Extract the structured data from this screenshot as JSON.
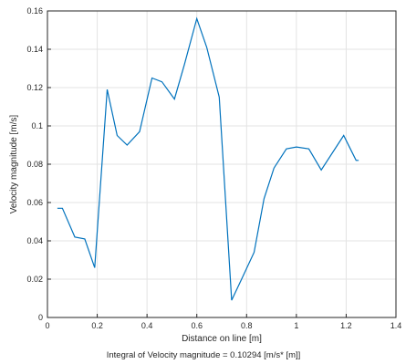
{
  "chart_data": {
    "type": "line",
    "xlabel": "Distance on line [m]",
    "ylabel": "Velocity magnitude [m/s]",
    "caption": "Integral of Velocity magnitude  = 0.10294 [m/s* [m]]",
    "xlim": [
      0,
      1.4
    ],
    "ylim": [
      0,
      0.16
    ],
    "xticks": [
      "0",
      "0.2",
      "0.4",
      "0.6",
      "0.8",
      "1",
      "1.2",
      "1.4"
    ],
    "yticks": [
      "0",
      "0.02",
      "0.04",
      "0.06",
      "0.08",
      "0.1",
      "0.12",
      "0.14",
      "0.16"
    ],
    "grid": true,
    "line_color": "#0072BD",
    "series": [
      {
        "x": [
          0.04,
          0.06,
          0.11,
          0.15,
          0.19,
          0.24,
          0.28,
          0.32,
          0.37,
          0.42,
          0.46,
          0.51,
          0.55,
          0.6,
          0.64,
          0.69,
          0.74,
          0.78,
          0.83,
          0.87,
          0.91,
          0.96,
          1.0,
          1.05,
          1.1,
          1.19,
          1.24,
          1.25
        ],
        "y": [
          0.057,
          0.057,
          0.042,
          0.041,
          0.026,
          0.119,
          0.095,
          0.09,
          0.097,
          0.125,
          0.123,
          0.114,
          0.132,
          0.156,
          0.141,
          0.115,
          0.009,
          0.02,
          0.034,
          0.062,
          0.078,
          0.088,
          0.089,
          0.088,
          0.077,
          0.095,
          0.082,
          0.082
        ]
      }
    ]
  }
}
